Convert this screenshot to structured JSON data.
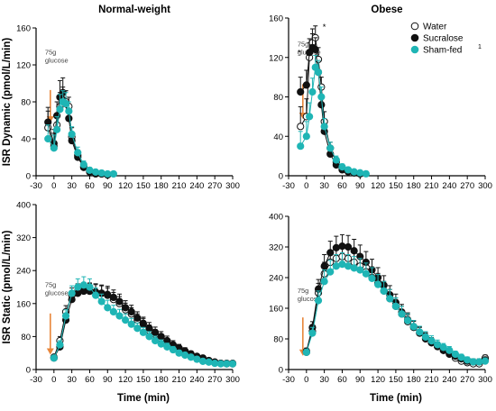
{
  "colors": {
    "water": "#ffffff",
    "sucralose": "#111111",
    "sham": "#1fb5b5",
    "arrow": "#e8863a"
  },
  "chart_data": [
    {
      "type": "scatter",
      "title": "Normal-weight",
      "ylabel": "ISR Dynamic (pmol/L/min)",
      "xlabel": "",
      "xlim": [
        -30,
        300
      ],
      "ylim": [
        0,
        160
      ],
      "xticks": [
        "-30",
        "0",
        "30",
        "60",
        "90",
        "120",
        "150",
        "180",
        "210",
        "240",
        "270",
        "300"
      ],
      "yticks": [
        "0",
        "40",
        "80",
        "120",
        "160"
      ],
      "annotation": [
        "75g",
        "glucose"
      ],
      "series": [
        {
          "name": "Water",
          "x": [
            -10,
            0,
            5,
            10,
            15,
            20,
            25,
            30,
            40,
            50,
            60,
            70,
            80,
            90
          ],
          "y": [
            52,
            32,
            55,
            75,
            82,
            80,
            75,
            42,
            22,
            10,
            5,
            3,
            2,
            1
          ],
          "err": [
            18,
            14,
            10,
            15,
            14,
            12,
            10,
            10,
            6,
            4,
            3,
            2,
            2,
            1
          ]
        },
        {
          "name": "Sucralose",
          "x": [
            -10,
            0,
            5,
            10,
            15,
            20,
            25,
            30,
            40,
            50,
            60,
            70,
            80,
            90
          ],
          "y": [
            58,
            35,
            65,
            85,
            90,
            78,
            62,
            38,
            20,
            9,
            4,
            2,
            2,
            1
          ],
          "err": [
            16,
            15,
            15,
            18,
            16,
            14,
            10,
            8,
            6,
            4,
            3,
            2,
            2,
            1
          ]
        },
        {
          "name": "Sham-fed",
          "x": [
            -10,
            0,
            5,
            10,
            15,
            20,
            25,
            30,
            40,
            50,
            60,
            70,
            80,
            90,
            100
          ],
          "y": [
            40,
            30,
            50,
            72,
            80,
            78,
            70,
            45,
            25,
            12,
            6,
            4,
            3,
            2,
            2
          ],
          "err": [
            15,
            14,
            14,
            16,
            12,
            12,
            10,
            8,
            6,
            4,
            3,
            2,
            2,
            1,
            1
          ]
        }
      ]
    },
    {
      "type": "scatter",
      "title": "Obese",
      "ylabel": "",
      "xlabel": "",
      "xlim": [
        -30,
        300
      ],
      "ylim": [
        0,
        160
      ],
      "xticks": [
        "-30",
        "0",
        "30",
        "60",
        "90",
        "120",
        "150",
        "180",
        "210",
        "240",
        "270",
        "300"
      ],
      "yticks": [
        "0",
        "40",
        "80",
        "120",
        "160"
      ],
      "annotation": [
        "75g",
        "glucose"
      ],
      "stars": [
        "*",
        "*"
      ],
      "legend": [
        "Water",
        "Sucralose",
        "Sham-fed"
      ],
      "legend_superscript": "1",
      "series": [
        {
          "name": "Water",
          "x": [
            -10,
            0,
            5,
            10,
            15,
            20,
            25,
            30,
            40,
            50,
            60,
            70,
            80,
            90
          ],
          "y": [
            50,
            60,
            120,
            135,
            140,
            118,
            90,
            55,
            28,
            14,
            8,
            5,
            3,
            2
          ],
          "err": [
            20,
            18,
            15,
            14,
            12,
            12,
            10,
            10,
            6,
            4,
            3,
            2,
            2,
            1
          ]
        },
        {
          "name": "Sucralose",
          "x": [
            -10,
            0,
            5,
            10,
            15,
            20,
            25,
            30,
            40,
            50,
            60,
            70,
            80,
            90
          ],
          "y": [
            85,
            92,
            125,
            130,
            128,
            105,
            72,
            45,
            22,
            11,
            6,
            4,
            3,
            2
          ],
          "err": [
            15,
            15,
            14,
            14,
            12,
            12,
            10,
            8,
            6,
            4,
            3,
            2,
            2,
            1
          ]
        },
        {
          "name": "Sham-fed",
          "x": [
            -10,
            0,
            5,
            10,
            15,
            20,
            25,
            30,
            40,
            50,
            60,
            70,
            80,
            90,
            100
          ],
          "y": [
            30,
            40,
            60,
            85,
            110,
            105,
            80,
            50,
            28,
            16,
            9,
            6,
            4,
            3,
            2
          ],
          "err": [
            15,
            15,
            14,
            14,
            12,
            12,
            10,
            8,
            6,
            4,
            3,
            2,
            2,
            1,
            1
          ]
        }
      ]
    },
    {
      "type": "scatter",
      "title": "",
      "ylabel": "ISR Static (pmol/L/min)",
      "xlabel": "Time (min)",
      "xlim": [
        -30,
        300
      ],
      "ylim": [
        0,
        400
      ],
      "xticks": [
        "-30",
        "0",
        "30",
        "60",
        "90",
        "120",
        "150",
        "180",
        "210",
        "240",
        "270",
        "300"
      ],
      "yticks": [
        "0",
        "80",
        "160",
        "240",
        "320",
        "400"
      ],
      "annotation": [
        "75g",
        "glucose"
      ],
      "series": [
        {
          "name": "Water",
          "x": [
            0,
            10,
            20,
            30,
            40,
            50,
            60,
            70,
            80,
            90,
            100,
            110,
            120,
            130,
            140,
            150,
            160,
            170,
            180,
            190,
            200,
            210,
            220,
            230,
            240,
            250,
            260,
            270,
            280,
            290,
            300
          ],
          "y": [
            30,
            70,
            140,
            180,
            190,
            192,
            190,
            188,
            185,
            180,
            170,
            160,
            145,
            135,
            120,
            110,
            95,
            85,
            75,
            65,
            55,
            50,
            40,
            35,
            30,
            25,
            20,
            18,
            15,
            15,
            15
          ],
          "err": [
            5,
            10,
            15,
            18,
            18,
            18,
            18,
            18,
            18,
            18,
            17,
            17,
            16,
            15,
            15,
            14,
            13,
            12,
            11,
            10,
            10,
            9,
            8,
            7,
            6,
            5,
            5,
            5,
            5,
            5,
            5
          ]
        },
        {
          "name": "Sucralose",
          "x": [
            0,
            10,
            20,
            30,
            40,
            50,
            60,
            70,
            80,
            90,
            100,
            110,
            120,
            130,
            140,
            150,
            160,
            170,
            180,
            190,
            200,
            210,
            220,
            230,
            240,
            250,
            260,
            270,
            280,
            290,
            300
          ],
          "y": [
            28,
            55,
            120,
            170,
            185,
            190,
            190,
            188,
            185,
            182,
            175,
            165,
            150,
            140,
            125,
            112,
            100,
            90,
            80,
            70,
            60,
            52,
            45,
            38,
            32,
            28,
            22,
            18,
            15,
            14,
            14
          ],
          "err": [
            5,
            10,
            15,
            18,
            20,
            20,
            20,
            20,
            20,
            20,
            18,
            18,
            17,
            16,
            15,
            15,
            14,
            13,
            12,
            11,
            10,
            9,
            8,
            7,
            6,
            5,
            5,
            5,
            5,
            5,
            5
          ]
        },
        {
          "name": "Sham-fed",
          "x": [
            0,
            10,
            20,
            30,
            40,
            50,
            60,
            70,
            80,
            90,
            100,
            110,
            120,
            130,
            140,
            150,
            160,
            170,
            180,
            190,
            200,
            210,
            220,
            230,
            240,
            250,
            260,
            270,
            280,
            290,
            300
          ],
          "y": [
            28,
            60,
            130,
            185,
            200,
            205,
            200,
            180,
            165,
            150,
            140,
            130,
            120,
            110,
            100,
            90,
            80,
            70,
            62,
            55,
            48,
            40,
            35,
            30,
            25,
            20,
            18,
            15,
            14,
            14,
            14
          ],
          "err": [
            5,
            10,
            15,
            18,
            20,
            20,
            20,
            18,
            18,
            18,
            16,
            16,
            15,
            14,
            13,
            12,
            12,
            11,
            10,
            9,
            8,
            7,
            6,
            5,
            5,
            5,
            5,
            5,
            5,
            5,
            5
          ]
        }
      ]
    },
    {
      "type": "scatter",
      "title": "",
      "ylabel": "",
      "xlabel": "Time (min)",
      "xlim": [
        -30,
        300
      ],
      "ylim": [
        0,
        400
      ],
      "xticks": [
        "-30",
        "0",
        "30",
        "60",
        "90",
        "120",
        "150",
        "180",
        "210",
        "240",
        "270",
        "300"
      ],
      "yticks": [
        "0",
        "80",
        "160",
        "240",
        "320",
        "400"
      ],
      "annotation": [
        "75g",
        "glucose"
      ],
      "series": [
        {
          "name": "Water",
          "x": [
            0,
            10,
            20,
            30,
            40,
            50,
            60,
            70,
            80,
            90,
            100,
            110,
            120,
            130,
            140,
            150,
            160,
            170,
            180,
            190,
            200,
            210,
            220,
            230,
            240,
            250,
            260,
            270,
            280,
            290,
            300
          ],
          "y": [
            45,
            100,
            200,
            250,
            280,
            290,
            295,
            290,
            280,
            270,
            255,
            240,
            225,
            205,
            185,
            165,
            145,
            125,
            110,
            95,
            80,
            70,
            60,
            50,
            40,
            30,
            22,
            18,
            15,
            15,
            30
          ],
          "err": [
            8,
            15,
            25,
            30,
            30,
            30,
            30,
            30,
            30,
            30,
            28,
            28,
            26,
            25,
            24,
            22,
            20,
            18,
            16,
            15,
            14,
            13,
            12,
            10,
            10,
            8,
            8,
            8,
            8,
            8,
            8
          ]
        },
        {
          "name": "Sucralose",
          "x": [
            0,
            10,
            20,
            30,
            40,
            50,
            60,
            70,
            80,
            90,
            100,
            110,
            120,
            130,
            140,
            150,
            160,
            170,
            180,
            190,
            200,
            210,
            220,
            230,
            240,
            250,
            260,
            270,
            280,
            290,
            300
          ],
          "y": [
            48,
            110,
            210,
            270,
            305,
            318,
            322,
            320,
            310,
            295,
            280,
            260,
            240,
            220,
            195,
            175,
            150,
            130,
            112,
            96,
            82,
            70,
            60,
            50,
            42,
            35,
            28,
            22,
            20,
            20,
            25
          ],
          "err": [
            8,
            15,
            25,
            30,
            30,
            30,
            30,
            30,
            30,
            30,
            28,
            28,
            26,
            25,
            24,
            22,
            20,
            18,
            16,
            15,
            14,
            13,
            12,
            10,
            10,
            8,
            8,
            8,
            8,
            8,
            8
          ]
        },
        {
          "name": "Sham-fed",
          "x": [
            0,
            10,
            20,
            30,
            40,
            50,
            60,
            70,
            80,
            90,
            100,
            110,
            120,
            130,
            140,
            150,
            160,
            170,
            180,
            190,
            200,
            210,
            220,
            230,
            240,
            250,
            260,
            270,
            280,
            290,
            300
          ],
          "y": [
            45,
            95,
            180,
            230,
            255,
            270,
            275,
            270,
            265,
            260,
            250,
            238,
            222,
            205,
            185,
            165,
            145,
            128,
            112,
            98,
            85,
            75,
            65,
            58,
            50,
            40,
            32,
            25,
            20,
            20,
            22
          ],
          "err": [
            8,
            15,
            25,
            30,
            30,
            30,
            30,
            30,
            30,
            30,
            28,
            28,
            26,
            25,
            24,
            22,
            20,
            18,
            16,
            15,
            14,
            13,
            12,
            10,
            10,
            8,
            8,
            8,
            8,
            8,
            8
          ]
        }
      ]
    }
  ]
}
